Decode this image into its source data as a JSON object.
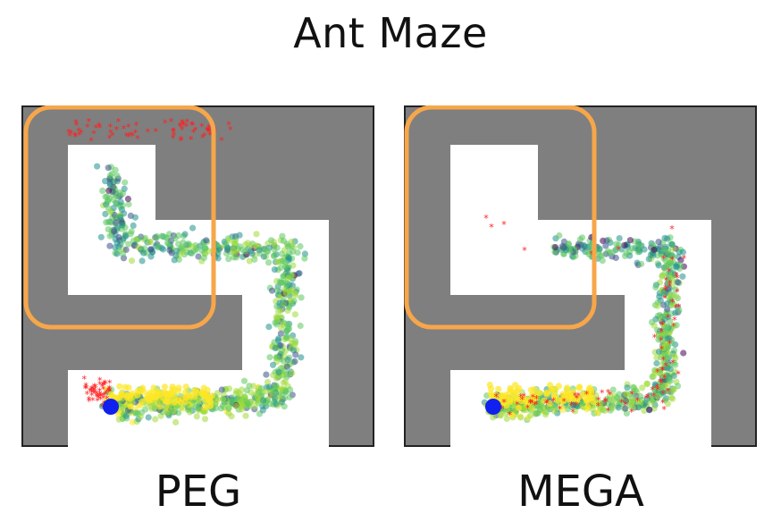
{
  "title": "Ant Maze",
  "panels": [
    {
      "label": "PEG"
    },
    {
      "label": "MEGA"
    }
  ],
  "colors": {
    "wall": "#7f7f7f",
    "floor": "#ffffff",
    "border": "#222222",
    "highlight": "#f7a64a",
    "goal_marker": "#ff2020",
    "agent": "#1020ee",
    "viridis": [
      "#440154",
      "#3b528b",
      "#21918c",
      "#5ec962",
      "#a0da39",
      "#fde725"
    ]
  }
}
